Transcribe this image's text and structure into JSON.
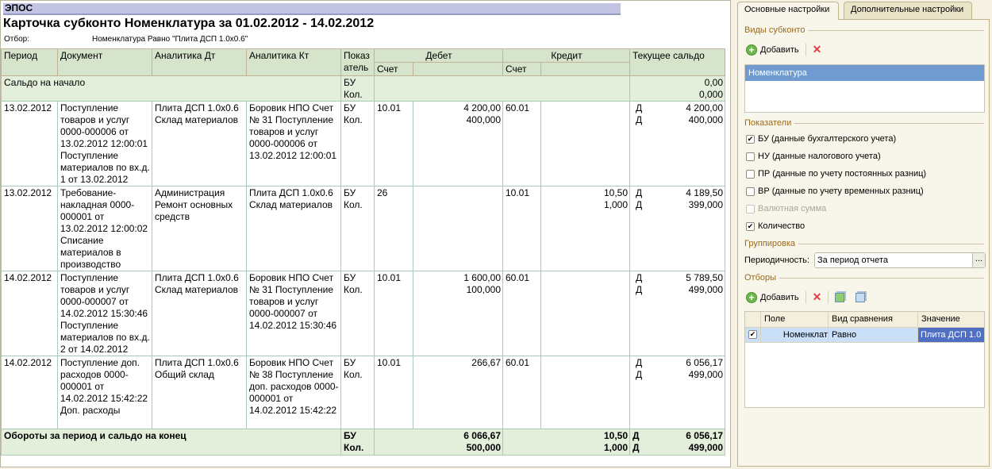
{
  "report": {
    "header": "ЭПОС",
    "title": "Карточка субконто Номенклатура за 01.02.2012 - 14.02.2012",
    "filter_label": "Отбор:",
    "filter_value": "Номенклатура Равно \"Плита ДСП 1.0x0.6\""
  },
  "columns": {
    "period": "Период",
    "document": "Документ",
    "an_dt": "Аналитика Дт",
    "an_kt": "Аналитика Кт",
    "indicator": "Показ\nатель",
    "debit": "Дебет",
    "credit": "Кредит",
    "account": "Счет",
    "balance": "Текущее сальдо"
  },
  "opening": {
    "label": "Сальдо на начало",
    "ind": "БУ\nКол.",
    "balance": "0,00\n0,000"
  },
  "rows": [
    {
      "period": "13.02.2012",
      "document": "Поступление товаров и услуг 0000-000006 от 13.02.2012 12:00:01 Поступление материалов по вх.д. 1 от 13.02.2012",
      "an_dt": "Плита ДСП 1.0x0.6 Склад материалов",
      "an_kt": "Боровик НПО Счет № 31 Поступление товаров и услуг 0000-000006 от 13.02.2012 12:00:01",
      "ind": "БУ\nКол.",
      "dt_acc": "10.01",
      "dt_sum": "4 200,00\n400,000",
      "kt_acc": "60.01",
      "kt_sum": "",
      "bal_side": "Д\nД",
      "bal": "4 200,00\n400,000"
    },
    {
      "period": "13.02.2012",
      "document": "Требование-накладная 0000-000001 от 13.02.2012 12:00:02 Списание материалов в производство",
      "an_dt": "Администрация Ремонт основных средств",
      "an_kt": "Плита ДСП 1.0x0.6 Склад материалов",
      "ind": "БУ\nКол.",
      "dt_acc": "26",
      "dt_sum": "",
      "kt_acc": "10.01",
      "kt_sum": "10,50\n1,000",
      "bal_side": "Д\nД",
      "bal": "4 189,50\n399,000"
    },
    {
      "period": "14.02.2012",
      "document": "Поступление товаров и услуг 0000-000007 от 14.02.2012 15:30:46 Поступление материалов по вх.д. 2 от 14.02.2012",
      "an_dt": "Плита ДСП 1.0x0.6 Склад материалов",
      "an_kt": "Боровик НПО Счет № 31 Поступление товаров и услуг 0000-000007 от 14.02.2012 15:30:46",
      "ind": "БУ\nКол.",
      "dt_acc": "10.01",
      "dt_sum": "1 600,00\n100,000",
      "kt_acc": "60.01",
      "kt_sum": "",
      "bal_side": "Д\nД",
      "bal": "5 789,50\n499,000"
    },
    {
      "period": "14.02.2012",
      "document": "Поступление доп. расходов 0000-000001 от 14.02.2012 15:42:22 Доп. расходы",
      "an_dt": "Плита ДСП 1.0x0.6 Общий склад",
      "an_kt": "Боровик НПО Счет № 38 Поступление доп. расходов 0000-000001 от 14.02.2012 15:42:22",
      "ind": "БУ\nКол.",
      "dt_acc": "10.01",
      "dt_sum": "266,67",
      "kt_acc": "60.01",
      "kt_sum": "",
      "bal_side": "Д\nД",
      "bal": "6 056,17\n499,000"
    }
  ],
  "totals": {
    "label": "Обороты за период и сальдо на конец",
    "ind": "БУ\nКол.",
    "dt_sum": "6 066,67\n500,000",
    "kt_sum": "10,50\n1,000",
    "bal_side": "Д\nД",
    "bal": "6 056,17\n499,000"
  },
  "panel": {
    "tabs": [
      "Основные настройки",
      "Дополнительные настройки"
    ],
    "subconto_section": "Виды субконто",
    "add_label": "Добавить",
    "subconto_items": [
      "Номенклатура"
    ],
    "indicators_section": "Показатели",
    "indicators": [
      {
        "label": "БУ (данные бухгалтерского учета)",
        "checked": true
      },
      {
        "label": "НУ (данные налогового учета)",
        "checked": false
      },
      {
        "label": "ПР (данные по учету постоянных разниц)",
        "checked": false
      },
      {
        "label": "ВР (данные по учету временных разниц)",
        "checked": false
      },
      {
        "label": "Валютная сумма",
        "checked": false,
        "disabled": true
      },
      {
        "label": "Количество",
        "checked": true
      }
    ],
    "grouping_section": "Группировка",
    "periodicity_label": "Периодичность:",
    "periodicity_value": "За период отчета",
    "ellipsis": "...",
    "filters_section": "Отборы",
    "filter_columns": [
      "Поле",
      "Вид сравнения",
      "Значение"
    ],
    "filter_rows": [
      {
        "checked": true,
        "field": "Номенклат",
        "comparison": "Равно",
        "value": "Плита ДСП 1.0"
      }
    ]
  },
  "colors": {
    "header_bg": "#d6e4cb",
    "band_bg": "#e3eedb",
    "selection": "#6f9bd0",
    "title_bar": "#c3c3e3"
  }
}
